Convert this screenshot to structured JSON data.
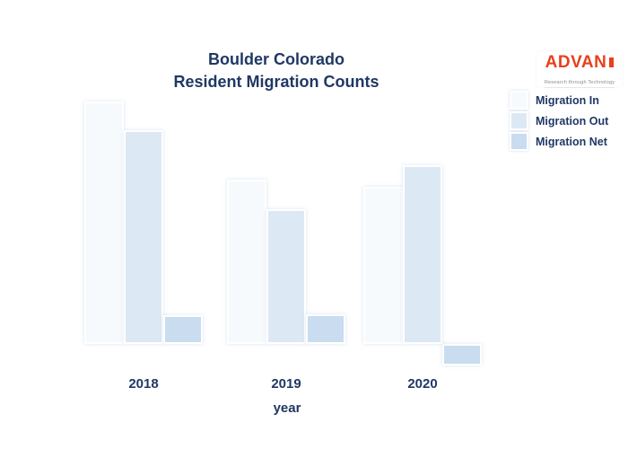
{
  "page": {
    "background": "#FFFFFF",
    "text_color": "#1F3864"
  },
  "title": {
    "line1": "Boulder Colorado",
    "line2": "Resident Migration Counts"
  },
  "logo": {
    "text": "ADVAN",
    "tagline": "Research through Technology",
    "brand_color": "#E8401C",
    "tagline_color": "#8A8A8A"
  },
  "legend": {
    "position": "top-right",
    "entries": [
      {
        "label": "Migration In",
        "color": "#F7FAFD"
      },
      {
        "label": "Migration Out",
        "color": "#DDE8F5"
      },
      {
        "label": "Migration Net",
        "color": "#C9DCF0"
      }
    ]
  },
  "x_axis": {
    "title": "year",
    "tick_labels": [
      "2018",
      "2019",
      "2020"
    ]
  },
  "chart_data": {
    "type": "bar",
    "title": "Boulder Colorado Resident Migration Counts",
    "categories": [
      "2018",
      "2019",
      "2020"
    ],
    "series": [
      {
        "name": "Migration In",
        "color": "#F7FAFD",
        "values": [
          270,
          183,
          175
        ]
      },
      {
        "name": "Migration Out",
        "color": "#DDE8F5",
        "values": [
          238,
          150,
          199
        ]
      },
      {
        "name": "Migration Net",
        "color": "#C9DCF0",
        "values": [
          32,
          33,
          -24
        ]
      }
    ],
    "xlabel": "year",
    "ylabel": "",
    "ylim": [
      -40,
      285
    ],
    "grid": false,
    "y_axis_visible": false,
    "legend_position": "top-right",
    "value_note": "No y-axis scale shown in image; values are relative estimates read from bar heights (Net = In - Out)."
  }
}
